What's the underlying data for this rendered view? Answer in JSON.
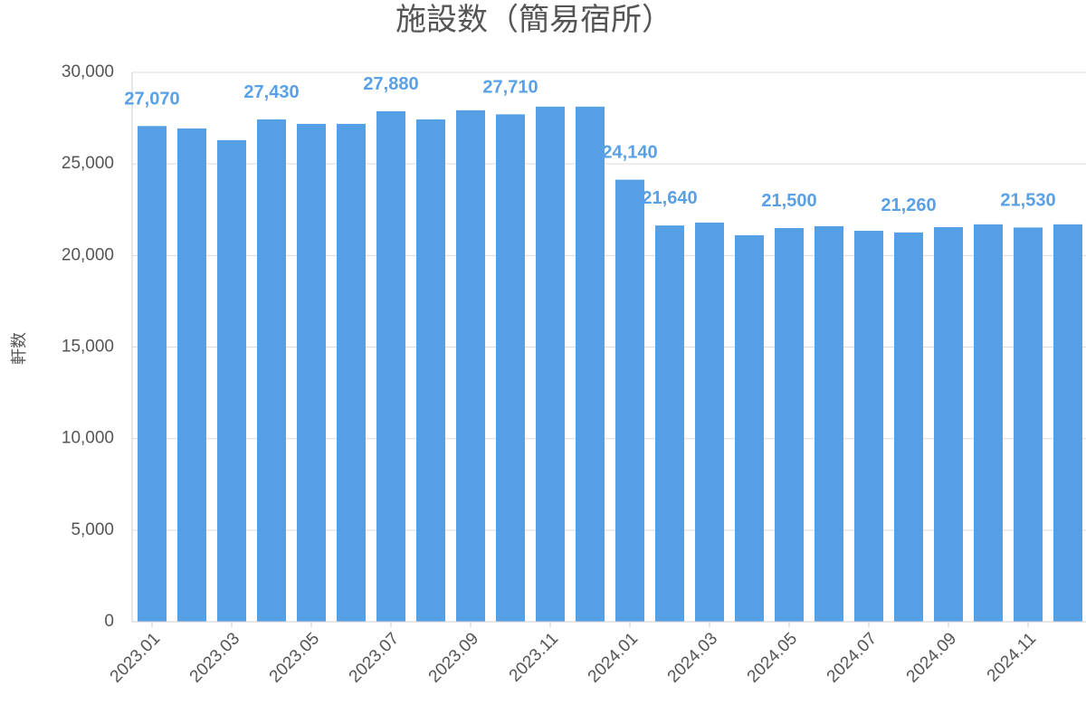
{
  "chart_data": {
    "type": "bar",
    "title": "施設数（簡易宿所）",
    "y_label": "軒数",
    "categories": [
      "2023.01",
      null,
      "2023.03",
      null,
      "2023.05",
      null,
      "2023.07",
      null,
      "2023.09",
      null,
      "2023.11",
      null,
      "2024.01",
      null,
      "2024.03",
      null,
      "2024.05",
      null,
      "2024.07",
      null,
      "2024.09",
      null,
      "2024.11",
      null
    ],
    "values": [
      27070,
      26940,
      26300,
      27430,
      27190,
      27190,
      27880,
      27430,
      27930,
      27710,
      28130,
      28130,
      24140,
      21640,
      21800,
      21110,
      21500,
      21600,
      21350,
      21260,
      21550,
      21700,
      21530,
      21700
    ],
    "value_labels": [
      "27,070",
      null,
      null,
      "27,430",
      null,
      null,
      "27,880",
      null,
      null,
      "27,710",
      null,
      null,
      "24,140",
      "21,640",
      null,
      null,
      "21,500",
      null,
      null,
      "21,260",
      null,
      null,
      "21,530",
      null
    ],
    "color": "#55a0e4",
    "ylim": [
      0,
      30000
    ],
    "yticks": [
      0,
      {
        "value": 5000,
        "label": "5,000"
      },
      {
        "value": 10000,
        "label": "10,000"
      },
      {
        "value": 15000,
        "label": "15,000"
      },
      {
        "value": 20000,
        "label": "20,000"
      },
      {
        "value": 25000,
        "label": "25,000"
      },
      {
        "value": 30000,
        "label": "30,000"
      }
    ],
    "grid": true
  }
}
